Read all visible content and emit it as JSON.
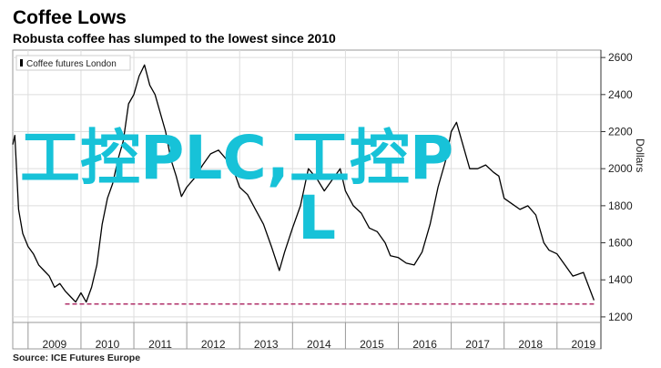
{
  "title": "Coffee Lows",
  "subtitle": "Robusta coffee has slumped to the lowest since 2010",
  "source": {
    "label": "Source:",
    "text": "ICE Futures Europe"
  },
  "watermark": {
    "line1": "工控PLC,工控P",
    "line2": "L",
    "color": "#17c2d8"
  },
  "colors": {
    "series": "#000000",
    "reference_line": "#b0306a",
    "grid": "#dddddd",
    "frame": "#999999"
  },
  "chart_data": {
    "type": "line",
    "title": "Coffee Lows",
    "subtitle": "Robusta coffee has slumped to the lowest since 2010",
    "xlabel": "",
    "ylabel": "Dollars",
    "x_tick_labels": [
      "2009",
      "2010",
      "2011",
      "2012",
      "2013",
      "2014",
      "2015",
      "2016",
      "2017",
      "2018",
      "2019"
    ],
    "y_ticks": [
      1200,
      1400,
      1600,
      1800,
      2000,
      2200,
      2400,
      2600
    ],
    "y_axis_position": "right",
    "ylim": [
      1170,
      2640
    ],
    "xlim": [
      2008.71,
      2019.83
    ],
    "grid": true,
    "legend": {
      "position": "top-left",
      "entries": [
        "Coffee futures London"
      ]
    },
    "series": [
      {
        "name": "Coffee futures London",
        "x": [
          2008.71,
          2008.75,
          2008.82,
          2008.9,
          2009.0,
          2009.1,
          2009.2,
          2009.3,
          2009.4,
          2009.5,
          2009.6,
          2009.7,
          2009.8,
          2009.9,
          2010.0,
          2010.1,
          2010.2,
          2010.3,
          2010.4,
          2010.5,
          2010.6,
          2010.7,
          2010.8,
          2010.9,
          2011.0,
          2011.1,
          2011.2,
          2011.3,
          2011.4,
          2011.5,
          2011.6,
          2011.7,
          2011.8,
          2011.9,
          2012.0,
          2012.15,
          2012.3,
          2012.45,
          2012.6,
          2012.75,
          2012.9,
          2013.0,
          2013.15,
          2013.3,
          2013.45,
          2013.6,
          2013.75,
          2013.85,
          2014.0,
          2014.15,
          2014.3,
          2014.45,
          2014.6,
          2014.75,
          2014.9,
          2015.0,
          2015.15,
          2015.3,
          2015.45,
          2015.6,
          2015.75,
          2015.85,
          2016.0,
          2016.15,
          2016.3,
          2016.45,
          2016.6,
          2016.75,
          2016.9,
          2017.0,
          2017.1,
          2017.2,
          2017.35,
          2017.5,
          2017.65,
          2017.8,
          2017.9,
          2018.0,
          2018.15,
          2018.3,
          2018.45,
          2018.6,
          2018.75,
          2018.85,
          2019.0,
          2019.15,
          2019.3,
          2019.5,
          2019.7
        ],
        "values": [
          2130,
          2180,
          1780,
          1650,
          1580,
          1540,
          1480,
          1450,
          1420,
          1360,
          1380,
          1340,
          1310,
          1280,
          1330,
          1280,
          1360,
          1480,
          1700,
          1840,
          1920,
          2050,
          2150,
          2350,
          2400,
          2500,
          2560,
          2450,
          2400,
          2300,
          2200,
          2050,
          1960,
          1850,
          1900,
          1950,
          2020,
          2080,
          2100,
          2050,
          1980,
          1900,
          1860,
          1780,
          1700,
          1580,
          1450,
          1550,
          1680,
          1800,
          2000,
          1950,
          1880,
          1940,
          2000,
          1880,
          1800,
          1760,
          1680,
          1660,
          1600,
          1530,
          1520,
          1490,
          1480,
          1550,
          1700,
          1900,
          2050,
          2200,
          2250,
          2150,
          2000,
          2000,
          2020,
          1980,
          1960,
          1840,
          1810,
          1780,
          1800,
          1750,
          1600,
          1560,
          1540,
          1480,
          1420,
          1440,
          1290
        ]
      },
      {
        "name": "",
        "kind": "reference",
        "x": [
          2009.7,
          2019.7
        ],
        "values": [
          1270,
          1270
        ]
      }
    ]
  }
}
